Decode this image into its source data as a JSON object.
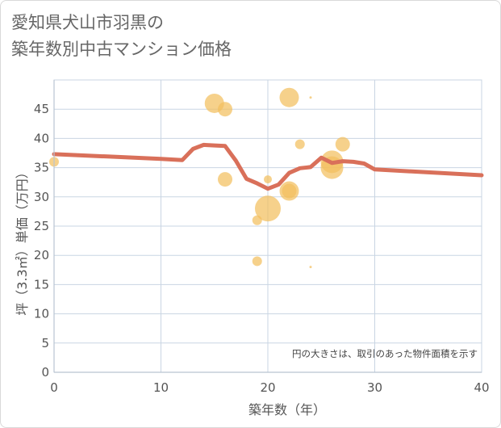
{
  "title": {
    "line1": "愛知県犬山市羽黒の",
    "line2": "築年数別中古マンション価格"
  },
  "note": "円の大きさは、取引のあった物件面積を示す",
  "colors": {
    "bubble": "#f2bf5e",
    "line": "#d9705a",
    "grid": "#c9d5e3",
    "axis": "#555555",
    "title": "#666666"
  },
  "chart_data": {
    "type": "scatter",
    "xlabel": "築年数（年）",
    "ylabel": "坪（3.3㎡）単価（万円）",
    "xlim": [
      0,
      40
    ],
    "ylim": [
      0,
      50
    ],
    "x_ticks": [
      0,
      10,
      20,
      30,
      40
    ],
    "y_ticks": [
      0,
      5,
      10,
      15,
      20,
      25,
      30,
      35,
      40,
      45
    ],
    "bubbles": [
      {
        "x": 0,
        "y": 36,
        "size": 6
      },
      {
        "x": 15,
        "y": 46,
        "size": 12
      },
      {
        "x": 16,
        "y": 45,
        "size": 9
      },
      {
        "x": 16,
        "y": 33,
        "size": 9
      },
      {
        "x": 19,
        "y": 26,
        "size": 6
      },
      {
        "x": 19,
        "y": 19,
        "size": 6
      },
      {
        "x": 20,
        "y": 33,
        "size": 5
      },
      {
        "x": 20,
        "y": 28,
        "size": 16
      },
      {
        "x": 22,
        "y": 47,
        "size": 12
      },
      {
        "x": 22,
        "y": 31,
        "size": 12
      },
      {
        "x": 22,
        "y": 31,
        "size": 9
      },
      {
        "x": 23,
        "y": 39,
        "size": 6
      },
      {
        "x": 24,
        "y": 47,
        "size": 1.5
      },
      {
        "x": 24,
        "y": 18,
        "size": 1.5
      },
      {
        "x": 26,
        "y": 36,
        "size": 14
      },
      {
        "x": 26,
        "y": 35,
        "size": 14
      },
      {
        "x": 27,
        "y": 39,
        "size": 9
      }
    ],
    "trend": {
      "x": [
        0,
        5,
        10,
        12,
        13,
        14,
        15,
        16,
        17,
        18,
        19,
        20,
        21,
        22,
        23,
        24,
        25,
        26,
        27,
        28,
        29,
        30,
        40
      ],
      "y": [
        37.3,
        36.9,
        36.5,
        36.3,
        38.2,
        38.9,
        38.8,
        38.7,
        36.2,
        33.1,
        32.3,
        31.4,
        32.1,
        34.1,
        34.9,
        35.1,
        36.7,
        35.8,
        36.1,
        36.0,
        35.7,
        34.7,
        33.7
      ]
    }
  }
}
